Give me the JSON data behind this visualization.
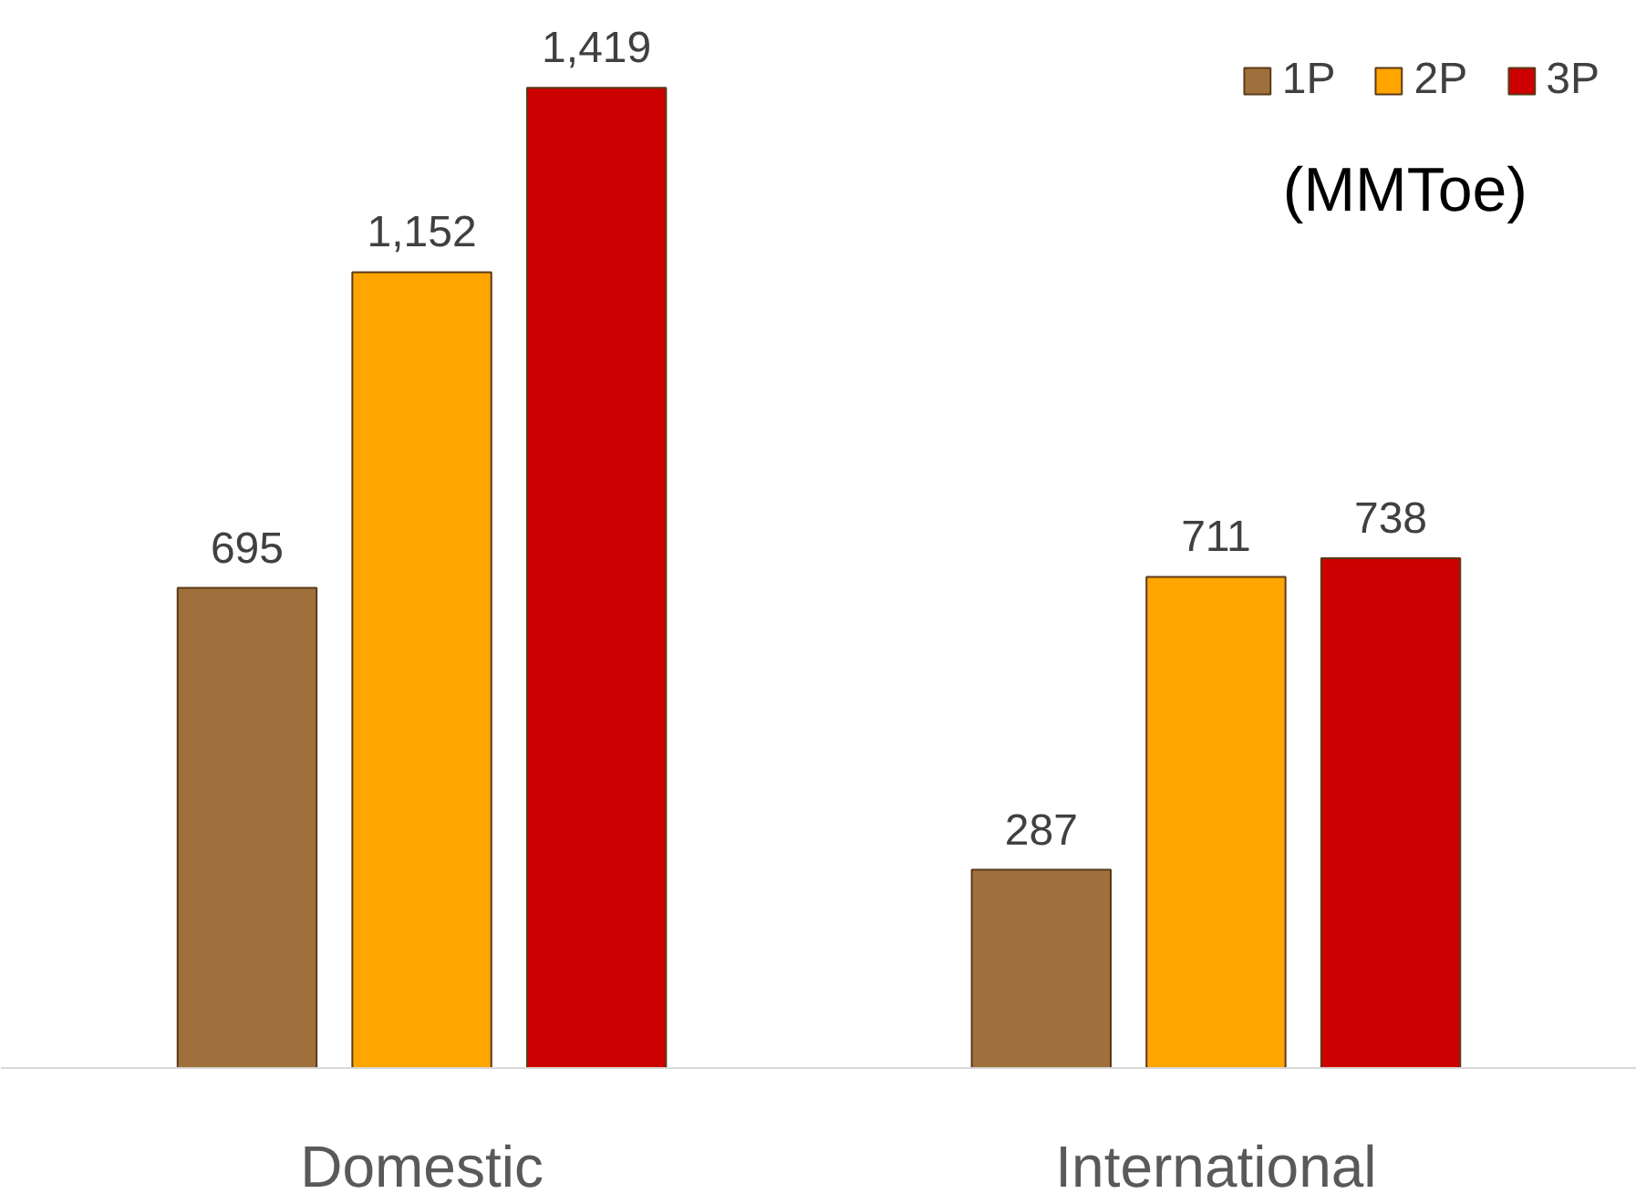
{
  "chart_data": {
    "type": "bar",
    "categories": [
      "Domestic",
      "International"
    ],
    "series": [
      {
        "name": "1P",
        "color": "#a0703c",
        "values": [
          695,
          287
        ],
        "value_labels": [
          "695",
          "287"
        ]
      },
      {
        "name": "2P",
        "color": "#ffa500",
        "values": [
          1152,
          711
        ],
        "value_labels": [
          "1,152",
          "711"
        ]
      },
      {
        "name": "3P",
        "color": "#cc0000",
        "values": [
          1419,
          738
        ],
        "value_labels": [
          "1,419",
          "738"
        ]
      }
    ],
    "annotations": [
      "(MMToe)"
    ],
    "data_labels": true,
    "legend": "top right",
    "grid": false
  }
}
